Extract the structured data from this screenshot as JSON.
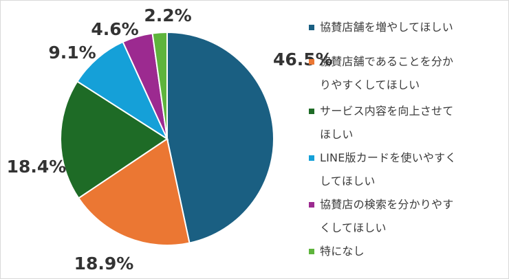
{
  "chart_data": {
    "type": "pie",
    "slices": [
      {
        "label": "協賛店舗を増やしてほしい",
        "value": 46.5,
        "value_label": "46.5%",
        "color": "#1a5f82"
      },
      {
        "label": "協賛店舗であることを分かりやすくしてほしい",
        "value": 18.9,
        "value_label": "18.9%",
        "color": "#eb7733"
      },
      {
        "label": "サービス内容を向上させてほしい",
        "value": 18.4,
        "value_label": "18.4%",
        "color": "#1e6b26"
      },
      {
        "label": "LINE版カードを使いやすくしてほしい",
        "value": 9.1,
        "value_label": "9.1%",
        "color": "#15a0d8"
      },
      {
        "label": "協賛店の検索を分かりやすくしてほしい",
        "value": 4.6,
        "value_label": "4.6%",
        "color": "#9c2a90"
      },
      {
        "label": "特になし",
        "value": 2.2,
        "value_label": "2.2%",
        "color": "#5eb43c"
      }
    ],
    "start_angle_deg": 0,
    "direction": "clockwise",
    "legend_position": "right"
  }
}
